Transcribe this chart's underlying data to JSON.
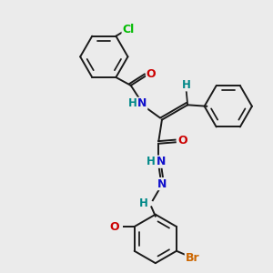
{
  "background_color": "#ebebeb",
  "bond_color": "#1a1a1a",
  "atom_colors": {
    "Cl": "#00bb00",
    "N": "#1111cc",
    "O": "#cc0000",
    "H": "#008888",
    "Br": "#cc6600",
    "C": "#1a1a1a"
  },
  "figsize": [
    3.0,
    3.0
  ],
  "dpi": 100
}
